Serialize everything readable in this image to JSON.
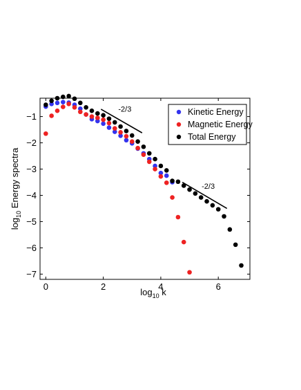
{
  "chart_data": {
    "type": "scatter",
    "title": "",
    "xlabel": {
      "base": "log",
      "sub": "10",
      "var": " k"
    },
    "ylabel": {
      "base": "log",
      "sub": "10",
      "rest": " Energy spectra"
    },
    "xlim": [
      -0.2,
      7.1
    ],
    "ylim": [
      -7.2,
      -0.3
    ],
    "xticks": [
      0,
      2,
      4,
      6
    ],
    "yticks": [
      -7,
      -6,
      -5,
      -4,
      -3,
      -2,
      -1
    ],
    "grid": false,
    "legend_position": "top-right",
    "series": [
      {
        "name": "Kinetic Energy",
        "color": "#3333ee",
        "x": [
          0.0,
          0.2,
          0.4,
          0.6,
          0.8,
          1.0,
          1.2,
          1.4,
          1.6,
          1.8,
          2.0,
          2.2,
          2.4,
          2.6,
          2.8,
          3.0,
          3.2,
          3.4,
          3.6,
          3.8,
          4.0,
          4.2,
          4.4
        ],
        "y": [
          -0.62,
          -0.52,
          -0.48,
          -0.45,
          -0.47,
          -0.55,
          -0.7,
          -0.92,
          -1.1,
          -1.17,
          -1.27,
          -1.42,
          -1.58,
          -1.73,
          -1.9,
          -2.02,
          -2.22,
          -2.4,
          -2.62,
          -2.88,
          -3.15,
          -3.25,
          -3.5
        ]
      },
      {
        "name": "Magnetic Energy",
        "color": "#ee2222",
        "x": [
          0.0,
          0.2,
          0.4,
          0.6,
          0.8,
          1.0,
          1.2,
          1.4,
          1.6,
          1.8,
          2.0,
          2.2,
          2.4,
          2.6,
          2.8,
          3.0,
          3.2,
          3.4,
          3.6,
          3.8,
          4.0,
          4.2,
          4.4,
          4.6,
          4.8,
          5.0
        ],
        "y": [
          -1.65,
          -0.97,
          -0.78,
          -0.63,
          -0.52,
          -0.65,
          -0.82,
          -0.92,
          -1.0,
          -1.05,
          -1.12,
          -1.25,
          -1.45,
          -1.6,
          -1.75,
          -1.95,
          -2.2,
          -2.45,
          -2.72,
          -3.0,
          -3.28,
          -3.52,
          -4.08,
          -4.83,
          -5.78,
          -6.93
        ]
      },
      {
        "name": "Total Energy",
        "color": "#000000",
        "x": [
          0.0,
          0.2,
          0.4,
          0.6,
          0.8,
          1.0,
          1.2,
          1.4,
          1.6,
          1.8,
          2.0,
          2.2,
          2.4,
          2.6,
          2.8,
          3.0,
          3.2,
          3.4,
          3.6,
          3.8,
          4.0,
          4.2,
          4.4,
          4.6,
          4.8,
          5.0,
          5.2,
          5.4,
          5.6,
          5.8,
          6.0,
          6.2,
          6.4,
          6.6,
          6.8
        ],
        "y": [
          -0.55,
          -0.4,
          -0.3,
          -0.25,
          -0.22,
          -0.32,
          -0.48,
          -0.65,
          -0.78,
          -0.88,
          -0.95,
          -1.08,
          -1.22,
          -1.38,
          -1.55,
          -1.72,
          -1.95,
          -2.15,
          -2.4,
          -2.62,
          -2.88,
          -3.05,
          -3.45,
          -3.48,
          -3.63,
          -3.78,
          -3.93,
          -4.08,
          -4.23,
          -4.38,
          -4.53,
          -4.8,
          -5.3,
          -5.88,
          -6.67
        ]
      }
    ],
    "annotations": [
      {
        "text": "-2/3",
        "line": [
          [
            1.92,
            -0.72
          ],
          [
            3.35,
            -1.62
          ]
        ],
        "label_at": [
          2.75,
          -0.82
        ]
      },
      {
        "text": "-2/3",
        "line": [
          [
            4.75,
            -3.5
          ],
          [
            6.3,
            -4.5
          ]
        ],
        "label_at": [
          5.65,
          -3.75
        ]
      }
    ]
  }
}
